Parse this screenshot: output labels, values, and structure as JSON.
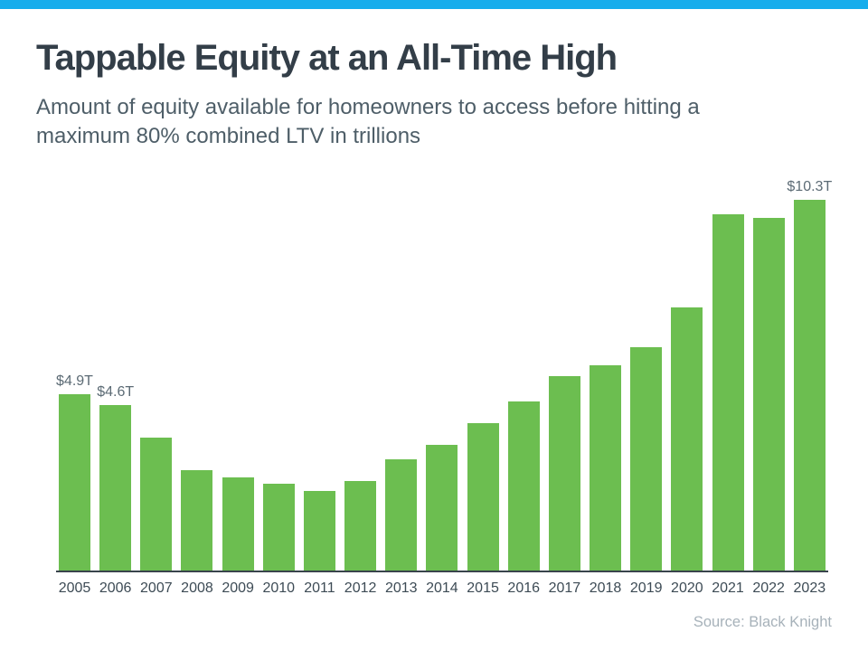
{
  "page": {
    "accent_bar_color": "#16ADEC",
    "title": "Tappable Equity at an All-Time High",
    "subtitle": "Amount of equity available for homeowners to access before hitting a maximum 80% combined LTV in trillions",
    "source": "Source: Black Knight"
  },
  "chart_data": {
    "type": "bar",
    "title": "Tappable Equity at an All-Time High",
    "subtitle": "Amount of equity available for homeowners to access before hitting a maximum 80% combined LTV in trillions",
    "unit": "trillions of dollars (USD)",
    "categories": [
      "2005",
      "2006",
      "2007",
      "2008",
      "2009",
      "2010",
      "2011",
      "2012",
      "2013",
      "2014",
      "2015",
      "2016",
      "2017",
      "2018",
      "2019",
      "2020",
      "2021",
      "2022",
      "2023"
    ],
    "values": [
      4.9,
      4.6,
      3.7,
      2.8,
      2.6,
      2.4,
      2.2,
      2.5,
      3.1,
      3.5,
      4.1,
      4.7,
      5.4,
      5.7,
      6.2,
      7.3,
      9.9,
      9.8,
      10.3
    ],
    "data_labels": [
      "$4.9T",
      "$4.6T",
      null,
      null,
      null,
      null,
      null,
      null,
      null,
      null,
      null,
      null,
      null,
      null,
      null,
      null,
      null,
      null,
      "$10.3T"
    ],
    "bar_color": "#6CBE50",
    "axis_color": "#39444C",
    "xlabel": "",
    "ylabel": "",
    "ylim": [
      0,
      11
    ],
    "grid": false,
    "legend": false,
    "source": "Source: Black Knight"
  }
}
